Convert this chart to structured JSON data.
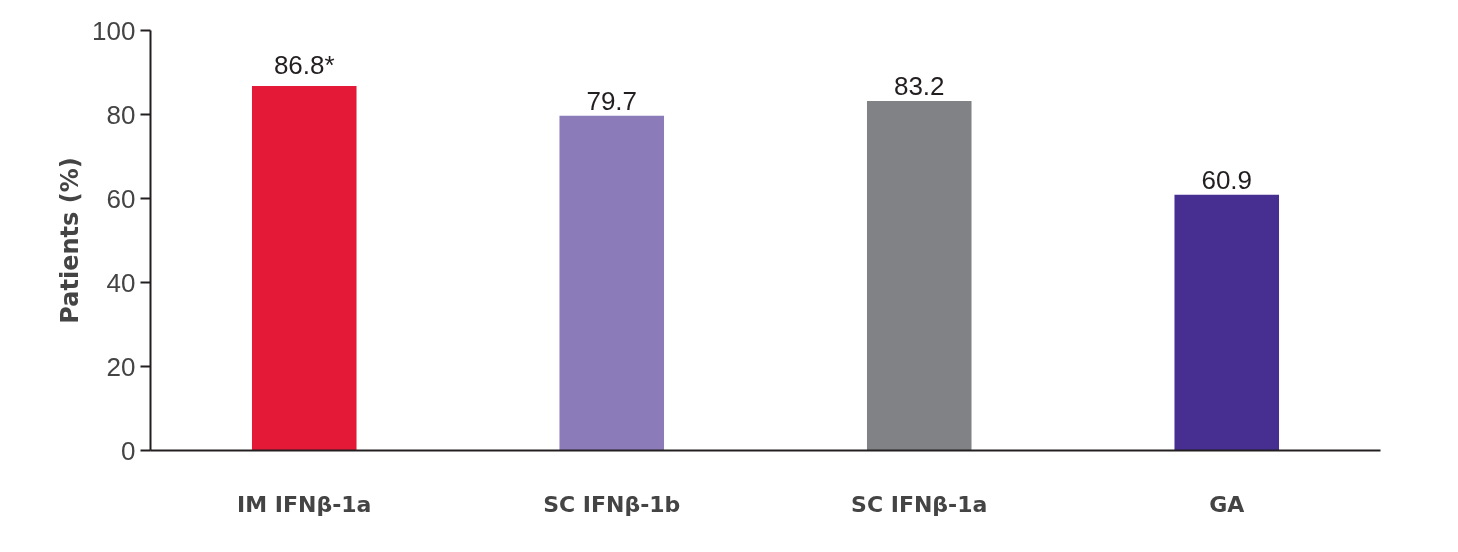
{
  "chart_data": {
    "type": "bar",
    "ylabel": "Patients (%)",
    "categories": [
      "IM IFNβ-1a",
      "SC IFNβ-1b",
      "SC IFNβ-1a",
      "GA"
    ],
    "values": [
      86.8,
      79.7,
      83.2,
      60.9
    ],
    "colors": [
      "#e31937",
      "#8b7bb8",
      "#818286",
      "#472f92"
    ],
    "value_labels": [
      "86.8*",
      "79.7",
      "83.2",
      "60.9"
    ],
    "ylim": [
      0,
      100
    ],
    "yticks": [
      0,
      20,
      40,
      60,
      80,
      100
    ],
    "grid": false
  }
}
